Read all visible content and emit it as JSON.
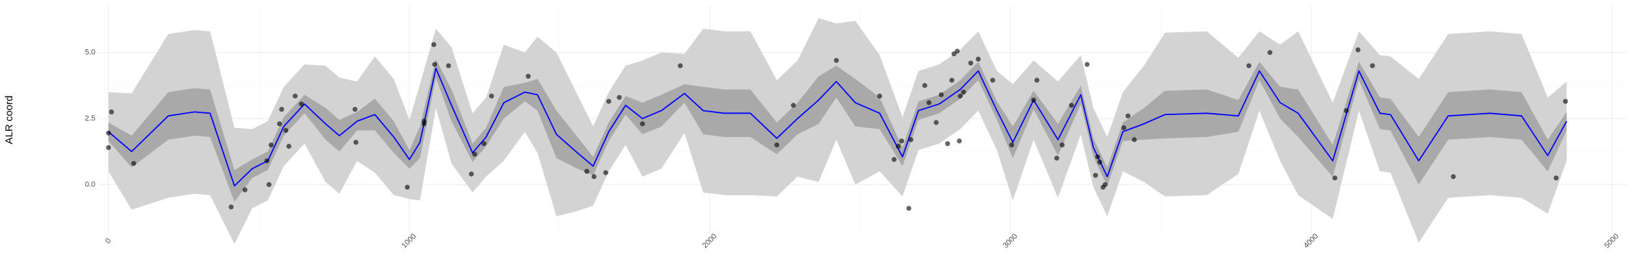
{
  "chart_data": {
    "type": "line",
    "y_label": "ALR coord",
    "xlim": [
      -30,
      5050
    ],
    "ylim": [
      -1.83,
      6.78
    ],
    "xticks": [
      0,
      1000,
      2000,
      3000,
      4000,
      5000
    ],
    "yticks": [
      {
        "value": 0,
        "label": "0.0"
      },
      {
        "value": 2.5,
        "label": "2.5"
      },
      {
        "value": 5,
        "label": "5.0"
      }
    ],
    "grid": true,
    "x": [
      0,
      77,
      199,
      286,
      338,
      419,
      478,
      530,
      583,
      652,
      722,
      768,
      827,
      886,
      949,
      1001,
      1036,
      1089,
      1141,
      1211,
      1256,
      1315,
      1385,
      1427,
      1490,
      1560,
      1612,
      1664,
      1720,
      1776,
      1839,
      1916,
      1978,
      2048,
      2135,
      2223,
      2292,
      2362,
      2421,
      2484,
      2565,
      2641,
      2694,
      2763,
      2833,
      2893,
      2955,
      3008,
      3077,
      3158,
      3234,
      3276,
      3322,
      3374,
      3444,
      3514,
      3653,
      3758,
      3828,
      3897,
      3957,
      4072,
      4159,
      4229,
      4264,
      4358,
      4456,
      4595,
      4700,
      4787,
      4850
    ],
    "bands": [
      {
        "color": "#d3d3d3",
        "lower": [
          0.5,
          -0.95,
          -0.5,
          -0.35,
          -0.4,
          -2.25,
          -0.9,
          -0.6,
          0.7,
          1.55,
          0.1,
          -0.35,
          0.9,
          0.45,
          -0.4,
          -0.55,
          -0.6,
          2.9,
          0.8,
          -0.3,
          0.3,
          0.9,
          2.0,
          1.2,
          -1.2,
          -1.0,
          -0.8,
          0.5,
          1.5,
          0.3,
          0.6,
          1.95,
          -0.3,
          -0.4,
          -0.4,
          -0.45,
          0.3,
          0.1,
          1.7,
          0.0,
          0.5,
          -0.45,
          1.3,
          1.55,
          2.1,
          2.8,
          1.3,
          -0.6,
          1.7,
          -0.5,
          1.9,
          -0.1,
          -1.2,
          0.5,
          0.1,
          -0.45,
          -0.4,
          0.4,
          2.8,
          0.9,
          -0.4,
          -1.3,
          2.8,
          0.5,
          0.45,
          -2.2,
          -0.5,
          -0.4,
          -0.5,
          -1.1,
          0.9
        ],
        "upper": [
          3.5,
          3.45,
          5.7,
          5.85,
          5.8,
          2.15,
          2.1,
          2.4,
          3.7,
          4.55,
          4.5,
          4.05,
          3.9,
          4.85,
          4.0,
          2.45,
          3.8,
          5.9,
          5.2,
          2.7,
          3.3,
          5.3,
          5.0,
          5.6,
          5.0,
          3.4,
          2.2,
          3.5,
          4.5,
          4.7,
          5.0,
          4.95,
          5.9,
          5.8,
          5.8,
          3.95,
          4.7,
          6.3,
          6.1,
          6.2,
          4.9,
          2.55,
          4.3,
          4.55,
          5.1,
          5.8,
          4.3,
          3.8,
          4.7,
          3.9,
          4.9,
          2.9,
          1.8,
          3.5,
          4.5,
          5.75,
          5.8,
          4.8,
          5.8,
          5.3,
          5.8,
          3.1,
          5.8,
          4.9,
          4.85,
          4.0,
          5.7,
          5.8,
          5.7,
          3.3,
          3.9
        ]
      },
      {
        "color": "#a9a9a9",
        "lower": [
          1.65,
          0.65,
          1.7,
          1.85,
          1.8,
          -0.65,
          0.25,
          0.55,
          1.85,
          2.7,
          1.7,
          1.25,
          2.05,
          2.05,
          1.2,
          0.6,
          1.0,
          4.05,
          2.4,
          0.85,
          1.45,
          2.5,
          3.15,
          2.8,
          1.0,
          0.6,
          0.35,
          1.65,
          2.65,
          1.9,
          2.2,
          3.1,
          1.9,
          1.8,
          1.8,
          1.15,
          1.9,
          2.3,
          3.3,
          2.2,
          2.1,
          0.7,
          2.45,
          2.7,
          3.25,
          3.95,
          2.45,
          1.0,
          2.85,
          1.1,
          3.05,
          1.05,
          -0.05,
          1.65,
          1.7,
          1.75,
          1.8,
          2.0,
          3.95,
          2.5,
          1.8,
          0.3,
          3.95,
          2.1,
          2.05,
          0.0,
          1.7,
          1.8,
          1.7,
          0.5,
          2.05
        ],
        "upper": [
          2.35,
          1.85,
          3.5,
          3.65,
          3.6,
          0.55,
          0.95,
          1.25,
          2.55,
          3.4,
          2.9,
          2.45,
          2.75,
          3.25,
          2.4,
          1.3,
          2.2,
          4.75,
          3.6,
          1.55,
          2.15,
          3.7,
          3.85,
          4.0,
          2.8,
          1.8,
          1.05,
          2.35,
          3.35,
          3.1,
          3.4,
          3.8,
          3.7,
          3.6,
          3.6,
          2.35,
          3.1,
          4.1,
          4.5,
          4.0,
          3.3,
          1.4,
          3.15,
          3.4,
          3.95,
          4.65,
          3.15,
          2.2,
          3.55,
          2.3,
          3.75,
          1.75,
          0.65,
          2.35,
          2.9,
          3.55,
          3.6,
          3.2,
          4.65,
          3.7,
          3.6,
          1.5,
          4.65,
          3.3,
          3.25,
          1.8,
          3.5,
          3.6,
          3.5,
          1.7,
          2.75
        ]
      }
    ],
    "series": [
      {
        "color": "#0000ff",
        "values": [
          2.0,
          1.25,
          2.6,
          2.75,
          2.7,
          -0.05,
          0.6,
          0.9,
          2.2,
          3.05,
          2.3,
          1.85,
          2.4,
          2.65,
          1.8,
          0.95,
          1.6,
          4.4,
          3.0,
          1.2,
          1.8,
          3.1,
          3.5,
          3.4,
          1.9,
          1.2,
          0.7,
          2.0,
          3.0,
          2.5,
          2.8,
          3.45,
          2.8,
          2.7,
          2.7,
          1.75,
          2.5,
          3.2,
          3.9,
          3.1,
          2.7,
          1.05,
          2.8,
          3.05,
          3.6,
          4.3,
          2.8,
          1.6,
          3.2,
          1.7,
          3.4,
          1.4,
          0.3,
          2.0,
          2.3,
          2.65,
          2.7,
          2.6,
          4.3,
          3.1,
          2.7,
          0.9,
          4.3,
          2.7,
          2.65,
          0.9,
          2.6,
          2.7,
          2.6,
          1.1,
          2.4
        ]
      }
    ],
    "points": {
      "color": "#000000",
      "x": [
        0,
        0,
        10,
        84,
        408,
        454,
        527,
        534,
        541,
        569,
        576,
        590,
        600,
        621,
        642,
        820,
        823,
        994,
        1050,
        1050,
        1082,
        1085,
        1131,
        1207,
        1218,
        1249,
        1274,
        1396,
        1591,
        1615,
        1654,
        1664,
        1699,
        1776,
        1902,
        2223,
        2278,
        2421,
        2565,
        2613,
        2627,
        2638,
        2662,
        2669,
        2715,
        2729,
        2753,
        2770,
        2791,
        2805,
        2812,
        2823,
        2830,
        2833,
        2844,
        2868,
        2893,
        2941,
        3004,
        3077,
        3088,
        3154,
        3172,
        3203,
        3255,
        3283,
        3290,
        3297,
        3308,
        3315,
        3377,
        3391,
        3412,
        3793,
        3863,
        4079,
        4117,
        4156,
        4204,
        4473,
        4815,
        4846
      ],
      "values": [
        1.4,
        1.95,
        2.75,
        0.8,
        -0.85,
        -0.2,
        0.9,
        0.0,
        1.5,
        2.3,
        2.85,
        2.05,
        1.45,
        3.35,
        3.05,
        2.85,
        1.6,
        -0.1,
        2.4,
        2.3,
        5.3,
        4.55,
        4.5,
        0.4,
        1.15,
        1.55,
        3.35,
        4.1,
        0.5,
        0.3,
        0.45,
        3.15,
        3.3,
        2.3,
        4.5,
        1.5,
        3.0,
        4.7,
        3.35,
        0.95,
        1.45,
        1.65,
        -0.9,
        1.7,
        3.75,
        3.1,
        2.35,
        3.4,
        1.55,
        3.95,
        4.95,
        5.05,
        1.65,
        3.35,
        3.5,
        4.6,
        4.75,
        3.95,
        1.5,
        3.2,
        3.95,
        1.0,
        1.5,
        3.0,
        4.55,
        0.35,
        1.05,
        0.85,
        -0.1,
        0.0,
        2.15,
        2.6,
        1.7,
        4.5,
        5.0,
        0.25,
        2.8,
        5.1,
        4.5,
        0.3,
        0.25,
        3.15
      ]
    }
  }
}
